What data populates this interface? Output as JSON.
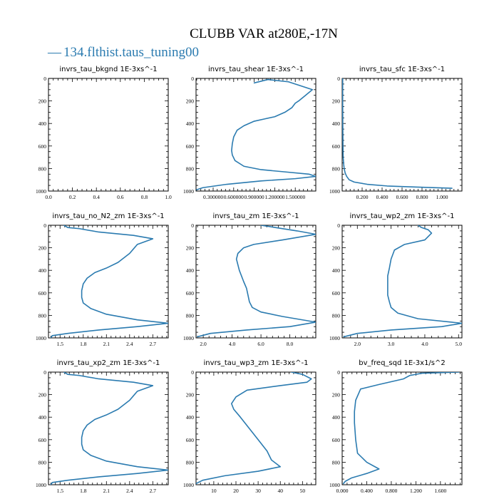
{
  "figure": {
    "title": "CLUBB VAR at280E,-17N",
    "legend_label": "134.flthist.taus_tuning00",
    "legend_dash": "—",
    "series_color": "#2b7bb0"
  },
  "chart_data": [
    {
      "type": "line",
      "title": "invrs_tau_bkgnd",
      "units": "1E-3xs^-1",
      "xlim": [
        0.0,
        1.0
      ],
      "xticks": [
        0.0,
        0.2,
        0.4,
        0.6,
        0.8,
        1.0
      ],
      "xtick_labels": [
        "0.0",
        "0.2",
        "0.4",
        "0.6",
        "0.8",
        "1.0"
      ],
      "ylim": [
        1000,
        0
      ],
      "yticks": [
        0,
        200,
        400,
        600,
        800,
        1000
      ],
      "ytick_labels": [
        "0",
        "200",
        "400",
        "600",
        "800",
        "1000"
      ],
      "series": [
        {
          "x": [],
          "y": []
        }
      ]
    },
    {
      "type": "line",
      "title": "invrs_tau_shear",
      "units": "1E-3xs^-1",
      "xlim": [
        0.05,
        1.8
      ],
      "xticks": [
        0.3,
        0.6,
        0.9,
        1.2,
        1.5
      ],
      "xtick_labels": [
        "0.300000",
        "0.600000",
        "0.900000",
        "1.200000",
        "1.500000"
      ],
      "ylim": [
        1000,
        0
      ],
      "yticks": [
        0,
        200,
        400,
        600,
        800,
        1000
      ],
      "ytick_labels": [
        "0",
        "200",
        "400",
        "600",
        "800",
        "1000"
      ],
      "series": [
        {
          "x": [
            0.9,
            1.1,
            1.4,
            1.75,
            1.65,
            1.55,
            1.5,
            1.45,
            1.35,
            1.2,
            1.05,
            0.9,
            0.75,
            0.65,
            0.6,
            0.58,
            0.57,
            0.58,
            0.62,
            0.75,
            1.0,
            1.35,
            1.7,
            1.8,
            1.5,
            1.0,
            0.5,
            0.15,
            0.05
          ],
          "y": [
            40,
            10,
            30,
            100,
            150,
            200,
            220,
            260,
            300,
            340,
            360,
            380,
            420,
            460,
            520,
            580,
            640,
            680,
            730,
            780,
            810,
            830,
            850,
            870,
            890,
            910,
            940,
            970,
            990
          ]
        }
      ]
    },
    {
      "type": "line",
      "title": "invrs_tau_sfc",
      "units": "1E-3xs^-1",
      "xlim": [
        0.0,
        1.2
      ],
      "xticks": [
        0.2,
        0.4,
        0.6,
        0.8,
        1.0
      ],
      "xtick_labels": [
        "0.200",
        "0.400",
        "0.600",
        "0.800",
        "1.000"
      ],
      "ylim": [
        1000,
        0
      ],
      "yticks": [
        0,
        200,
        400,
        600,
        800,
        1000
      ],
      "ytick_labels": [
        "0",
        "200",
        "400",
        "600",
        "800",
        "1000"
      ],
      "series": [
        {
          "x": [
            0.005,
            0.005,
            0.006,
            0.007,
            0.008,
            0.01,
            0.015,
            0.02,
            0.03,
            0.045,
            0.07,
            0.12,
            0.25,
            0.45,
            0.75,
            1.1
          ],
          "y": [
            0,
            200,
            400,
            500,
            600,
            700,
            760,
            800,
            840,
            870,
            900,
            920,
            940,
            955,
            965,
            975
          ]
        }
      ]
    },
    {
      "type": "line",
      "title": "invrs_tau_no_N2_zm",
      "units": "1E-3xs^-1",
      "xlim": [
        1.35,
        2.9
      ],
      "xticks": [
        1.5,
        1.8,
        2.1,
        2.4,
        2.7
      ],
      "xtick_labels": [
        "1.5",
        "1.8",
        "2.1",
        "2.4",
        "2.7"
      ],
      "ylim": [
        1000,
        0
      ],
      "yticks": [
        0,
        200,
        400,
        600,
        800,
        1000
      ],
      "ytick_labels": [
        "0",
        "200",
        "400",
        "600",
        "800",
        "1000"
      ],
      "series": [
        {
          "x": [
            1.55,
            1.6,
            1.75,
            2.0,
            2.45,
            2.7,
            2.5,
            2.45,
            2.4,
            2.25,
            2.1,
            1.95,
            1.85,
            1.8,
            1.78,
            1.78,
            1.8,
            1.9,
            2.1,
            2.5,
            2.9,
            2.5,
            2.0,
            1.6,
            1.4,
            1.38
          ],
          "y": [
            0,
            20,
            30,
            60,
            90,
            120,
            170,
            210,
            250,
            330,
            380,
            420,
            470,
            520,
            580,
            640,
            690,
            740,
            790,
            840,
            870,
            900,
            930,
            960,
            980,
            1000
          ]
        }
      ]
    },
    {
      "type": "line",
      "title": "invrs_tau_zm",
      "units": "1E-3xs^-1",
      "xlim": [
        1.5,
        9.8
      ],
      "xticks": [
        2.0,
        4.0,
        6.0,
        8.0
      ],
      "xtick_labels": [
        "2.0",
        "4.0",
        "6.0",
        "8.0"
      ],
      "ylim": [
        1000,
        0
      ],
      "yticks": [
        0,
        200,
        400,
        600,
        800,
        1000
      ],
      "ytick_labels": [
        "0",
        "200",
        "400",
        "600",
        "800",
        "1000"
      ],
      "series": [
        {
          "x": [
            6.0,
            7.0,
            8.5,
            9.8,
            7.5,
            5.5,
            4.8,
            4.4,
            4.3,
            4.5,
            4.8,
            5.0,
            5.1,
            5.2,
            5.4,
            6.0,
            7.5,
            9.8,
            8.0,
            5.0,
            2.5,
            1.6
          ],
          "y": [
            0,
            20,
            50,
            80,
            130,
            170,
            200,
            250,
            300,
            400,
            500,
            560,
            620,
            680,
            730,
            770,
            810,
            860,
            900,
            930,
            960,
            990
          ]
        }
      ]
    },
    {
      "type": "line",
      "title": "invrs_tau_wp2_zm",
      "units": "1E-3xs^-1",
      "xlim": [
        1.55,
        5.1
      ],
      "xticks": [
        2.0,
        3.0,
        4.0,
        5.0
      ],
      "xtick_labels": [
        "2.0",
        "3.0",
        "4.0",
        "5.0"
      ],
      "ylim": [
        1000,
        0
      ],
      "yticks": [
        0,
        200,
        400,
        600,
        800,
        1000
      ],
      "ytick_labels": [
        "0",
        "200",
        "400",
        "600",
        "800",
        "1000"
      ],
      "series": [
        {
          "x": [
            3.8,
            3.9,
            4.1,
            4.2,
            4.0,
            3.4,
            3.1,
            3.0,
            2.95,
            2.9,
            2.9,
            2.9,
            2.95,
            3.0,
            3.2,
            3.8,
            5.1,
            4.5,
            3.0,
            2.0,
            1.6
          ],
          "y": [
            0,
            20,
            40,
            70,
            130,
            170,
            220,
            300,
            380,
            450,
            550,
            620,
            680,
            730,
            780,
            830,
            870,
            900,
            930,
            960,
            990
          ]
        }
      ]
    },
    {
      "type": "line",
      "title": "invrs_tau_xp2_zm",
      "units": "1E-3xs^-1",
      "xlim": [
        1.35,
        2.9
      ],
      "xticks": [
        1.5,
        1.8,
        2.1,
        2.4,
        2.7
      ],
      "xtick_labels": [
        "1.5",
        "1.8",
        "2.1",
        "2.4",
        "2.7"
      ],
      "ylim": [
        1000,
        0
      ],
      "yticks": [
        0,
        200,
        400,
        600,
        800,
        1000
      ],
      "ytick_labels": [
        "0",
        "200",
        "400",
        "600",
        "800",
        "1000"
      ],
      "series": [
        {
          "x": [
            1.55,
            1.6,
            1.75,
            2.0,
            2.45,
            2.7,
            2.5,
            2.45,
            2.4,
            2.25,
            2.1,
            1.95,
            1.85,
            1.8,
            1.78,
            1.78,
            1.8,
            1.9,
            2.1,
            2.5,
            2.9,
            2.5,
            2.0,
            1.6,
            1.4,
            1.38
          ],
          "y": [
            0,
            20,
            30,
            60,
            90,
            120,
            170,
            210,
            250,
            330,
            380,
            420,
            470,
            520,
            580,
            640,
            690,
            740,
            790,
            840,
            870,
            900,
            930,
            960,
            980,
            1000
          ]
        }
      ]
    },
    {
      "type": "line",
      "title": "invrs_tau_wp3_zm",
      "units": "1E-3xs^-1",
      "xlim": [
        2,
        56
      ],
      "xticks": [
        10,
        20,
        30,
        40,
        50
      ],
      "xtick_labels": [
        "10",
        "20",
        "30",
        "40",
        "50"
      ],
      "ylim": [
        1000,
        0
      ],
      "yticks": [
        0,
        200,
        400,
        600,
        800,
        1000
      ],
      "ytick_labels": [
        "0",
        "200",
        "400",
        "600",
        "800",
        "1000"
      ],
      "series": [
        {
          "x": [
            45,
            50,
            54,
            52,
            40,
            25,
            20,
            18,
            19,
            22,
            26,
            30,
            34,
            36,
            40,
            30,
            15,
            5,
            2
          ],
          "y": [
            0,
            20,
            60,
            90,
            120,
            160,
            220,
            280,
            330,
            400,
            500,
            600,
            700,
            780,
            840,
            880,
            920,
            960,
            990
          ]
        }
      ]
    },
    {
      "type": "line",
      "title": "bv_freq_sqd",
      "units": "1E-3x1/s^2",
      "xlim": [
        0.0,
        1.95
      ],
      "xticks": [
        0.0,
        0.4,
        0.8,
        1.2,
        1.6
      ],
      "xtick_labels": [
        "0.000",
        "0.400",
        "0.800",
        "1.200",
        "1.600"
      ],
      "ylim": [
        1000,
        0
      ],
      "yticks": [
        0,
        200,
        400,
        600,
        800,
        1000
      ],
      "ytick_labels": [
        "0",
        "200",
        "400",
        "600",
        "800",
        "1000"
      ],
      "series": [
        {
          "x": [
            1.9,
            1.3,
            1.1,
            1.0,
            0.6,
            0.3,
            0.22,
            0.2,
            0.2,
            0.22,
            0.25,
            0.4,
            0.6,
            0.4,
            0.15,
            0.05,
            0.02
          ],
          "y": [
            0,
            10,
            30,
            60,
            110,
            150,
            250,
            350,
            450,
            600,
            720,
            800,
            860,
            900,
            940,
            970,
            990
          ]
        }
      ]
    }
  ]
}
